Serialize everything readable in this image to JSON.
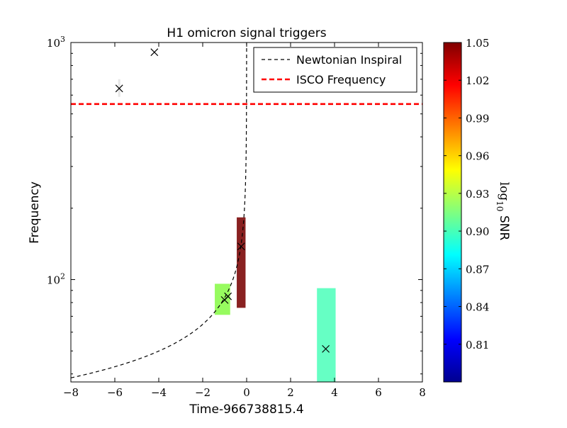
{
  "chart_data": {
    "type": "scatter",
    "title": "H1 omicron signal triggers",
    "xlabel": "Time-966738815.4",
    "ylabel": "Frequency",
    "xlim": [
      -8,
      8
    ],
    "ylim_log": [
      37,
      1000
    ],
    "yscale": "log",
    "x_ticks": [
      -8,
      -6,
      -4,
      -2,
      0,
      2,
      4,
      6,
      8
    ],
    "x_tick_labels": [
      "−8",
      "−6",
      "−4",
      "−2",
      "0",
      "2",
      "4",
      "6",
      "8"
    ],
    "y_ticks": [
      {
        "value": 100,
        "base": "10",
        "exp": "2"
      },
      {
        "value": 1000,
        "base": "10",
        "exp": "3"
      }
    ],
    "legend": {
      "placement": "top-right",
      "entries": [
        {
          "label": "Newtonian Inspiral",
          "color": "#000000",
          "style": "dashed-thin"
        },
        {
          "label": "ISCO Frequency",
          "color": "#ff0000",
          "style": "dashed-thick"
        }
      ]
    },
    "isco_frequency": 550,
    "inspiral_curve": {
      "description": "Newtonian inspiral frequency track",
      "merger_time": 0.0,
      "ref_time": -8.0,
      "ref_freq": 38.5,
      "exponent": -0.375
    },
    "tiles": [
      {
        "t0": -1.45,
        "t1": -0.75,
        "f0": 71,
        "f1": 96,
        "log10_snr": 0.925,
        "color": "#97fb5f"
      },
      {
        "t0": -0.45,
        "t1": -0.05,
        "f0": 76,
        "f1": 183,
        "log10_snr": 1.05,
        "color": "#892121"
      },
      {
        "t0": 3.2,
        "t1": 4.05,
        "f0": 37,
        "f1": 92,
        "log10_snr": 0.89,
        "color": "#66ffc4"
      },
      {
        "t0": -5.85,
        "t1": -5.75,
        "f0": 590,
        "f1": 700,
        "log10_snr": 0.0,
        "color": "#e6e6e6"
      }
    ],
    "triggers": [
      {
        "t": -5.8,
        "f": 640
      },
      {
        "t": -4.2,
        "f": 910
      },
      {
        "t": -1.0,
        "f": 82
      },
      {
        "t": -0.85,
        "f": 85
      },
      {
        "t": -0.25,
        "f": 138
      },
      {
        "t": 3.6,
        "f": 51
      }
    ],
    "colorbar": {
      "label_prefix": "log",
      "label_sub": "10",
      "label_suffix": " SNR",
      "min": 0.78,
      "max": 1.05,
      "ticks": [
        "0.81",
        "0.84",
        "0.87",
        "0.90",
        "0.93",
        "0.96",
        "0.99",
        "1.02",
        "1.05"
      ],
      "tick_values": [
        0.81,
        0.84,
        0.87,
        0.9,
        0.93,
        0.96,
        0.99,
        1.02,
        1.05
      ],
      "colormap": "jet"
    }
  }
}
